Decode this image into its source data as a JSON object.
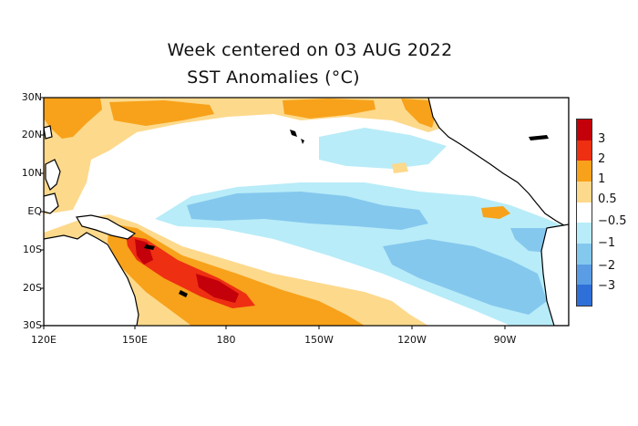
{
  "title": {
    "line1": "Week centered on 03 AUG 2022",
    "line2": "SST Anomalies (°C)"
  },
  "map": {
    "region": "Tropical Pacific",
    "lon_range": [
      "120E",
      "75W"
    ],
    "lat_range": [
      "30S",
      "30N"
    ],
    "lat_labels": [
      "30N",
      "20N",
      "10N",
      "EQ",
      "10S",
      "20S",
      "30S"
    ],
    "lon_labels": [
      "120E",
      "150E",
      "180",
      "150W",
      "120W",
      "90W"
    ],
    "land_color": "#ffffff",
    "coastline_color": "#000000"
  },
  "legend": {
    "labels": [
      "3",
      "2",
      "1",
      "0.5",
      "−0.5",
      "−1",
      "−2",
      "−3"
    ],
    "colors": [
      "#c4000a",
      "#ee2f12",
      "#f7a21a",
      "#fdd98c",
      "#ffffff",
      "#b8ecf8",
      "#85c8ee",
      "#5a9de4",
      "#2f6fd8"
    ]
  }
}
